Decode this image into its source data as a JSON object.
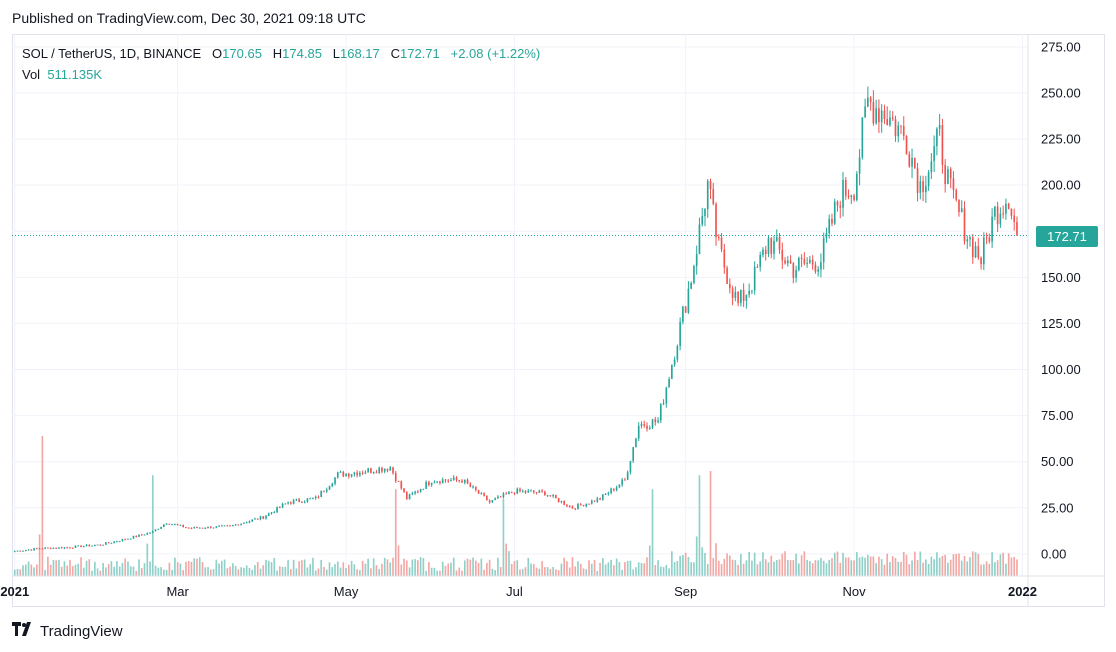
{
  "header": {
    "published": "Published on TradingView.com, Dec 30, 2021 09:18 UTC"
  },
  "legend": {
    "symbol": "SOL / TetherUS, 1D, BINANCE",
    "open_label": "O",
    "open": "170.65",
    "high_label": "H",
    "high": "174.85",
    "low_label": "L",
    "low": "168.17",
    "close_label": "C",
    "close": "172.71",
    "change": "+2.08 (+1.22%)",
    "vol_label": "Vol",
    "vol": "511.135K"
  },
  "price_tag": "172.71",
  "footer": {
    "brand": "TradingView"
  },
  "colors": {
    "up": "#26a69a",
    "down": "#ef5350",
    "up_vol": "#8fd0c9",
    "down_vol": "#f3a7a5",
    "grid": "#f0f3fa"
  },
  "chart_data": {
    "type": "candlestick",
    "y_axis": {
      "ticks": [
        0,
        25,
        50,
        75,
        100,
        125,
        150,
        175,
        200,
        225,
        250,
        275
      ],
      "tick_labels": [
        "0.00",
        "25.00",
        "50.00",
        "75.00",
        "100.00",
        "125.00",
        "150.00",
        "175.00",
        "200.00",
        "225.00",
        "250.00",
        "275.00"
      ],
      "ylim": [
        -12,
        282
      ]
    },
    "x_axis": {
      "labels": [
        "2021",
        "Mar",
        "May",
        "Jul",
        "Sep",
        "Nov",
        "2022"
      ],
      "label_dates": [
        "2021-01-01",
        "2021-03-01",
        "2021-05-01",
        "2021-07-01",
        "2021-09-01",
        "2021-11-01",
        "2022-01-01"
      ],
      "xlim": [
        "2020-12-31",
        "2022-01-03"
      ]
    },
    "last_price": 172.71,
    "close_anchors": [
      [
        "2021-01-01",
        1.5
      ],
      [
        "2021-01-10",
        3
      ],
      [
        "2021-01-20",
        3.5
      ],
      [
        "2021-02-01",
        5
      ],
      [
        "2021-02-10",
        8
      ],
      [
        "2021-02-20",
        12
      ],
      [
        "2021-02-25",
        17
      ],
      [
        "2021-03-05",
        14
      ],
      [
        "2021-03-20",
        15
      ],
      [
        "2021-04-01",
        20
      ],
      [
        "2021-04-10",
        28
      ],
      [
        "2021-04-20",
        30
      ],
      [
        "2021-04-28",
        43
      ],
      [
        "2021-05-08",
        45
      ],
      [
        "2021-05-17",
        47
      ],
      [
        "2021-05-23",
        30
      ],
      [
        "2021-06-01",
        40
      ],
      [
        "2021-06-12",
        40
      ],
      [
        "2021-06-22",
        28
      ],
      [
        "2021-07-01",
        34
      ],
      [
        "2021-07-12",
        33
      ],
      [
        "2021-07-22",
        25
      ],
      [
        "2021-08-01",
        30
      ],
      [
        "2021-08-10",
        40
      ],
      [
        "2021-08-15",
        70
      ],
      [
        "2021-08-22",
        72
      ],
      [
        "2021-08-28",
        110
      ],
      [
        "2021-09-03",
        150
      ],
      [
        "2021-09-09",
        200
      ],
      [
        "2021-09-13",
        165
      ],
      [
        "2021-09-20",
        135
      ],
      [
        "2021-09-26",
        150
      ],
      [
        "2021-10-01",
        170
      ],
      [
        "2021-10-10",
        155
      ],
      [
        "2021-10-20",
        160
      ],
      [
        "2021-10-27",
        195
      ],
      [
        "2021-11-01",
        200
      ],
      [
        "2021-11-06",
        245
      ],
      [
        "2021-11-12",
        240
      ],
      [
        "2021-11-20",
        225
      ],
      [
        "2021-11-25",
        200
      ],
      [
        "2021-12-02",
        225
      ],
      [
        "2021-12-06",
        195
      ],
      [
        "2021-12-13",
        170
      ],
      [
        "2021-12-17",
        160
      ],
      [
        "2021-12-22",
        185
      ],
      [
        "2021-12-27",
        195
      ],
      [
        "2021-12-30",
        172.71
      ]
    ],
    "volume_spikes": [
      [
        "2021-01-11",
        1.0
      ],
      [
        "2021-02-20",
        0.72
      ],
      [
        "2021-05-19",
        0.62
      ],
      [
        "2021-06-27",
        0.55
      ],
      [
        "2021-08-20",
        0.62
      ],
      [
        "2021-09-06",
        0.72
      ],
      [
        "2021-09-10",
        0.75
      ]
    ]
  }
}
